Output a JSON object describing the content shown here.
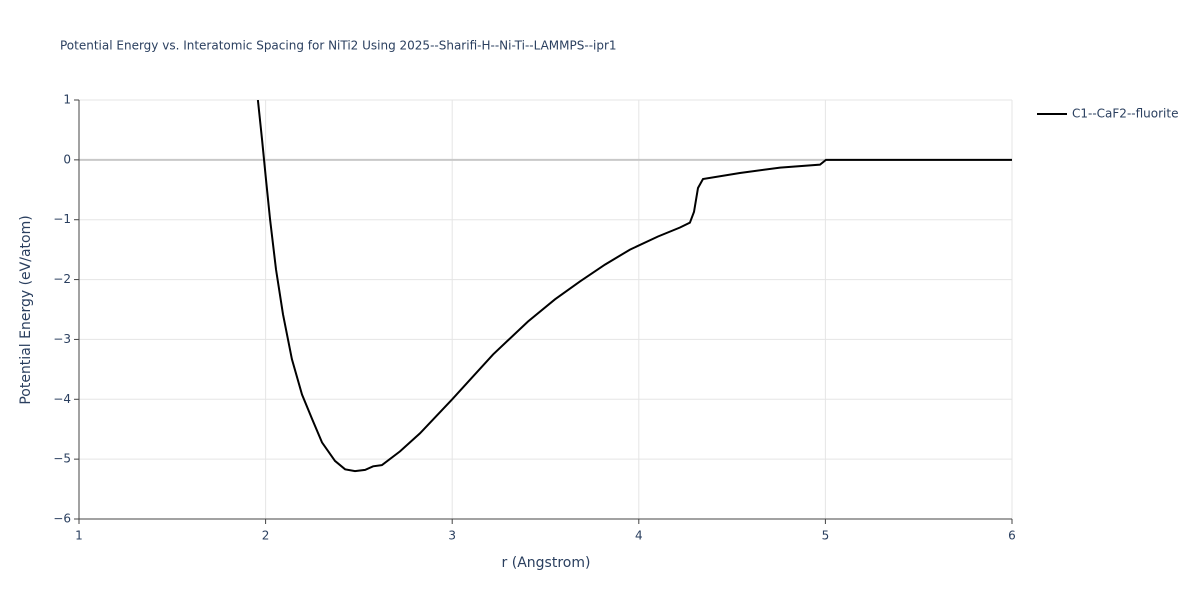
{
  "chart_data": {
    "type": "line",
    "title": "Potential Energy vs. Interatomic Spacing for NiTi2 Using 2025--Sharifi-H--Ni-Ti--LAMMPS--ipr1",
    "x_label": "r (Angstrom)",
    "y_label": "Potential Energy (eV/atom)",
    "xlim": [
      1,
      6
    ],
    "ylim": [
      -6,
      1
    ],
    "xticks": [
      1,
      2,
      3,
      4,
      5,
      6
    ],
    "yticks": [
      {
        "value": -6,
        "label": "−6"
      },
      {
        "value": -5,
        "label": "−5"
      },
      {
        "value": -4,
        "label": "−4"
      },
      {
        "value": -3,
        "label": "−3"
      },
      {
        "value": -2,
        "label": "−2"
      },
      {
        "value": -1,
        "label": "−1"
      },
      0,
      1
    ],
    "grid": true,
    "legend": "top-right",
    "series": [
      {
        "name": "C1--CaF2--fluorite",
        "color": "#000000",
        "x": [
          1.959,
          1.981,
          2.002,
          2.024,
          2.056,
          2.093,
          2.141,
          2.195,
          2.249,
          2.302,
          2.372,
          2.426,
          2.479,
          2.533,
          2.576,
          2.624,
          2.72,
          2.827,
          3.0,
          3.219,
          3.406,
          3.551,
          3.685,
          3.819,
          3.953,
          4.103,
          4.221,
          4.274,
          4.296,
          4.317,
          4.344,
          4.542,
          4.757,
          4.971,
          5.003,
          6
        ],
        "values": [
          1,
          0.33,
          -0.33,
          -1,
          -1.83,
          -2.58,
          -3.33,
          -3.92,
          -4.33,
          -4.72,
          -5.03,
          -5.17,
          -5.2,
          -5.18,
          -5.12,
          -5.1,
          -4.87,
          -4.57,
          -4.0,
          -3.25,
          -2.7,
          -2.33,
          -2.03,
          -1.75,
          -1.5,
          -1.28,
          -1.13,
          -1.05,
          -0.87,
          -0.47,
          -0.32,
          -0.22,
          -0.13,
          -0.08,
          0,
          0
        ]
      }
    ]
  }
}
